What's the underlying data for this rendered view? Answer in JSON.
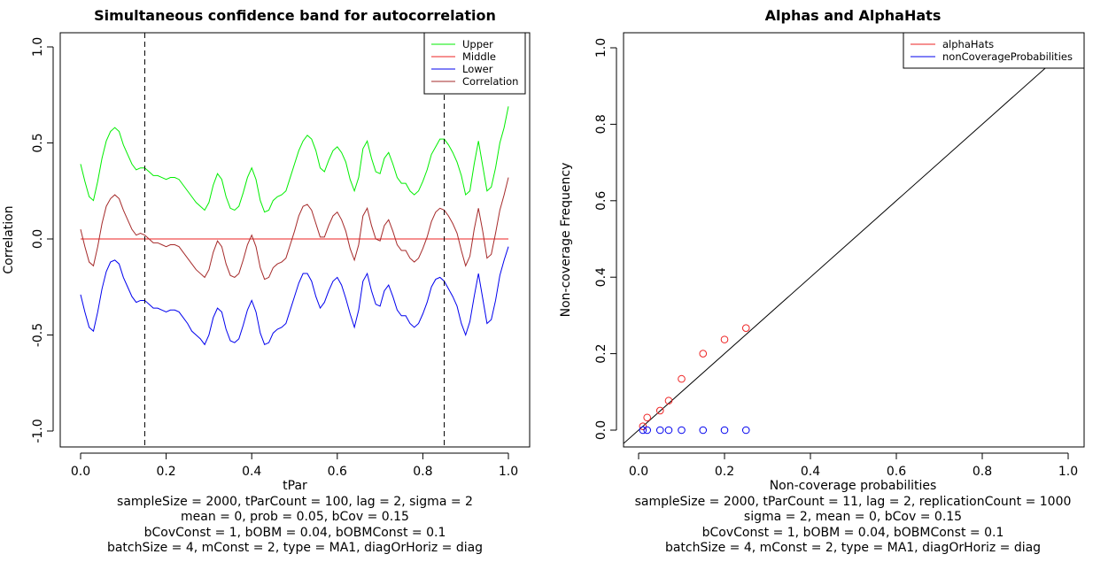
{
  "chart_data": [
    {
      "type": "line",
      "title": "Simultaneous confidence band for autocorrelation",
      "xlabel": "tPar",
      "ylabel": "Correlation",
      "xlim": [
        0,
        1
      ],
      "ylim": [
        -1,
        1
      ],
      "x_ticks": [
        "0.0",
        "0.2",
        "0.4",
        "0.6",
        "0.8",
        "1.0"
      ],
      "y_ticks": [
        "-1.0",
        "-0.5",
        "0.0",
        "0.5",
        "1.0"
      ],
      "grid": false,
      "legend_position": "top-right",
      "vertical_lines": [
        0.15,
        0.85
      ],
      "x": [
        0.0,
        0.01,
        0.02,
        0.03,
        0.04,
        0.05,
        0.06,
        0.07,
        0.08,
        0.09,
        0.1,
        0.11,
        0.12,
        0.13,
        0.14,
        0.15,
        0.16,
        0.17,
        0.18,
        0.19,
        0.2,
        0.21,
        0.22,
        0.23,
        0.24,
        0.25,
        0.26,
        0.27,
        0.28,
        0.29,
        0.3,
        0.31,
        0.32,
        0.33,
        0.34,
        0.35,
        0.36,
        0.37,
        0.38,
        0.39,
        0.4,
        0.41,
        0.42,
        0.43,
        0.44,
        0.45,
        0.46,
        0.47,
        0.48,
        0.49,
        0.5,
        0.51,
        0.52,
        0.53,
        0.54,
        0.55,
        0.56,
        0.57,
        0.58,
        0.59,
        0.6,
        0.61,
        0.62,
        0.63,
        0.64,
        0.65,
        0.66,
        0.67,
        0.68,
        0.69,
        0.7,
        0.71,
        0.72,
        0.73,
        0.74,
        0.75,
        0.76,
        0.77,
        0.78,
        0.79,
        0.8,
        0.81,
        0.82,
        0.83,
        0.84,
        0.85,
        0.86,
        0.87,
        0.88,
        0.89,
        0.9,
        0.91,
        0.92,
        0.93,
        0.94,
        0.95,
        0.96,
        0.97,
        0.98,
        0.99,
        1.0
      ],
      "series": [
        {
          "name": "Upper",
          "color": "#00ee00",
          "values": [
            0.39,
            0.3,
            0.22,
            0.2,
            0.3,
            0.42,
            0.51,
            0.56,
            0.58,
            0.56,
            0.49,
            0.44,
            0.39,
            0.36,
            0.37,
            0.37,
            0.35,
            0.33,
            0.33,
            0.32,
            0.31,
            0.32,
            0.32,
            0.31,
            0.28,
            0.25,
            0.22,
            0.19,
            0.17,
            0.15,
            0.19,
            0.28,
            0.34,
            0.31,
            0.22,
            0.16,
            0.15,
            0.17,
            0.24,
            0.32,
            0.37,
            0.31,
            0.2,
            0.14,
            0.15,
            0.2,
            0.22,
            0.23,
            0.25,
            0.32,
            0.39,
            0.46,
            0.51,
            0.54,
            0.52,
            0.46,
            0.37,
            0.35,
            0.41,
            0.46,
            0.48,
            0.45,
            0.4,
            0.31,
            0.25,
            0.32,
            0.47,
            0.51,
            0.42,
            0.35,
            0.34,
            0.42,
            0.45,
            0.39,
            0.32,
            0.29,
            0.29,
            0.25,
            0.23,
            0.25,
            0.3,
            0.36,
            0.44,
            0.48,
            0.52,
            0.52,
            0.49,
            0.45,
            0.4,
            0.33,
            0.23,
            0.25,
            0.39,
            0.51,
            0.38,
            0.25,
            0.27,
            0.37,
            0.5,
            0.58,
            0.69
          ]
        },
        {
          "name": "Middle",
          "color": "#ee2222",
          "values": [
            0.0,
            0.0,
            0.0,
            0.0,
            0.0,
            0.0,
            0.0,
            0.0,
            0.0,
            0.0,
            0.0,
            0.0,
            0.0,
            0.0,
            0.0,
            0.0,
            0.0,
            0.0,
            0.0,
            0.0,
            0.0,
            0.0,
            0.0,
            0.0,
            0.0,
            0.0,
            0.0,
            0.0,
            0.0,
            0.0,
            0.0,
            0.0,
            0.0,
            0.0,
            0.0,
            0.0,
            0.0,
            0.0,
            0.0,
            0.0,
            0.0,
            0.0,
            0.0,
            0.0,
            0.0,
            0.0,
            0.0,
            0.0,
            0.0,
            0.0,
            0.0,
            0.0,
            0.0,
            0.0,
            0.0,
            0.0,
            0.0,
            0.0,
            0.0,
            0.0,
            0.0,
            0.0,
            0.0,
            0.0,
            0.0,
            0.0,
            0.0,
            0.0,
            0.0,
            0.0,
            0.0,
            0.0,
            0.0,
            0.0,
            0.0,
            0.0,
            0.0,
            0.0,
            0.0,
            0.0,
            0.0,
            0.0,
            0.0,
            0.0,
            0.0,
            0.0,
            0.0,
            0.0,
            0.0,
            0.0,
            0.0,
            0.0,
            0.0,
            0.0,
            0.0,
            0.0,
            0.0,
            0.0,
            0.0,
            0.0,
            0.0
          ]
        },
        {
          "name": "Lower",
          "color": "#0000ee",
          "values": [
            -0.29,
            -0.38,
            -0.46,
            -0.48,
            -0.38,
            -0.26,
            -0.17,
            -0.12,
            -0.11,
            -0.13,
            -0.2,
            -0.25,
            -0.3,
            -0.33,
            -0.32,
            -0.32,
            -0.34,
            -0.36,
            -0.36,
            -0.37,
            -0.38,
            -0.37,
            -0.37,
            -0.38,
            -0.41,
            -0.44,
            -0.48,
            -0.5,
            -0.52,
            -0.55,
            -0.5,
            -0.41,
            -0.36,
            -0.38,
            -0.47,
            -0.53,
            -0.54,
            -0.52,
            -0.45,
            -0.37,
            -0.32,
            -0.38,
            -0.49,
            -0.55,
            -0.54,
            -0.49,
            -0.47,
            -0.46,
            -0.44,
            -0.37,
            -0.3,
            -0.23,
            -0.18,
            -0.18,
            -0.22,
            -0.3,
            -0.36,
            -0.33,
            -0.27,
            -0.22,
            -0.2,
            -0.24,
            -0.31,
            -0.39,
            -0.46,
            -0.37,
            -0.22,
            -0.18,
            -0.27,
            -0.34,
            -0.35,
            -0.27,
            -0.24,
            -0.3,
            -0.37,
            -0.4,
            -0.4,
            -0.44,
            -0.46,
            -0.44,
            -0.39,
            -0.33,
            -0.25,
            -0.21,
            -0.2,
            -0.22,
            -0.26,
            -0.3,
            -0.35,
            -0.44,
            -0.5,
            -0.43,
            -0.3,
            -0.18,
            -0.31,
            -0.44,
            -0.42,
            -0.32,
            -0.19,
            -0.11,
            -0.04
          ]
        },
        {
          "name": "Correlation",
          "color": "#a52a2a",
          "values": [
            0.05,
            -0.04,
            -0.12,
            -0.14,
            -0.04,
            0.08,
            0.17,
            0.21,
            0.23,
            0.21,
            0.15,
            0.1,
            0.05,
            0.02,
            0.03,
            0.02,
            0.0,
            -0.02,
            -0.02,
            -0.03,
            -0.04,
            -0.03,
            -0.03,
            -0.04,
            -0.07,
            -0.1,
            -0.13,
            -0.16,
            -0.18,
            -0.2,
            -0.16,
            -0.07,
            -0.01,
            -0.04,
            -0.13,
            -0.19,
            -0.2,
            -0.18,
            -0.11,
            -0.03,
            0.02,
            -0.04,
            -0.15,
            -0.21,
            -0.2,
            -0.15,
            -0.13,
            -0.12,
            -0.1,
            -0.03,
            0.04,
            0.12,
            0.17,
            0.18,
            0.15,
            0.08,
            0.01,
            0.01,
            0.07,
            0.12,
            0.14,
            0.1,
            0.04,
            -0.05,
            -0.11,
            -0.03,
            0.12,
            0.16,
            0.07,
            0.0,
            -0.01,
            0.07,
            0.1,
            0.04,
            -0.03,
            -0.06,
            -0.06,
            -0.1,
            -0.12,
            -0.1,
            -0.05,
            0.01,
            0.09,
            0.14,
            0.16,
            0.15,
            0.12,
            0.08,
            0.03,
            -0.06,
            -0.14,
            -0.09,
            0.05,
            0.16,
            0.04,
            -0.1,
            -0.08,
            0.03,
            0.15,
            0.23,
            0.32
          ]
        }
      ]
    },
    {
      "type": "scatter",
      "title": "Alphas and AlphaHats",
      "xlabel": "Non-coverage probabilities",
      "ylabel": "Non-coverage Frequency",
      "xlim": [
        0,
        1
      ],
      "ylim": [
        0,
        1
      ],
      "x_ticks": [
        "0.0",
        "0.2",
        "0.4",
        "0.6",
        "0.8",
        "1.0"
      ],
      "y_ticks": [
        "0.0",
        "0.2",
        "0.4",
        "0.6",
        "0.8",
        "1.0"
      ],
      "grid": false,
      "legend_position": "top-right",
      "reference_line": "y = x",
      "series": [
        {
          "name": "alphaHats",
          "color": "#ee2222",
          "x": [
            0.01,
            0.02,
            0.05,
            0.07,
            0.1,
            0.15,
            0.2,
            0.25
          ],
          "y": [
            0.01,
            0.033,
            0.051,
            0.077,
            0.134,
            0.2,
            0.237,
            0.267
          ]
        },
        {
          "name": "nonCoverageProbabilities",
          "color": "#0000ee",
          "x": [
            0.01,
            0.02,
            0.05,
            0.07,
            0.1,
            0.15,
            0.2,
            0.25
          ],
          "y": [
            0,
            0,
            0,
            0,
            0,
            0,
            0,
            0
          ]
        }
      ]
    }
  ],
  "captions": {
    "left": [
      "sampleSize = 2000, tParCount = 100, lag = 2, sigma = 2",
      "mean = 0, prob = 0.05, bCov = 0.15",
      "bCovConst = 1, bOBM = 0.04, bOBMConst = 0.1",
      "batchSize = 4, mConst = 2, type = MA1, diagOrHoriz = diag"
    ],
    "right": [
      "sampleSize = 2000, tParCount = 11, lag = 2, replicationCount = 1000",
      "sigma = 2, mean = 0, bCov = 0.15",
      "bCovConst = 1, bOBM = 0.04, bOBMConst = 0.1",
      "batchSize = 4, mConst = 2, type = MA1, diagOrHoriz = diag"
    ]
  }
}
